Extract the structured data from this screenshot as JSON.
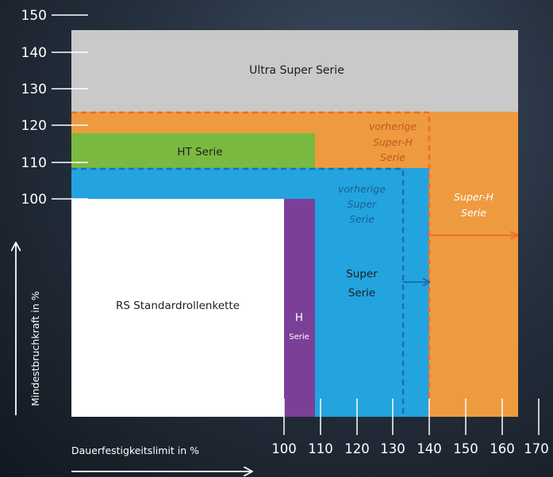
{
  "y_axis": {
    "label": "Mindestbruchkraft in %",
    "ticks": [
      100,
      110,
      120,
      130,
      140,
      150
    ]
  },
  "x_axis": {
    "label": "Dauerfestigkeitslimit in %",
    "ticks": [
      100,
      110,
      120,
      130,
      140,
      150,
      160,
      170
    ]
  },
  "regions": {
    "ultra_super": {
      "label": "Ultra Super Serie"
    },
    "super_h": {
      "line1": "Super-H",
      "line2": "Serie"
    },
    "prev_super_h": {
      "line1": "vorherige",
      "line2": "Super-H",
      "line3": "Serie"
    },
    "ht": {
      "label": "HT Serie"
    },
    "prev_super": {
      "line1": "vorherige",
      "line2": "Super",
      "line3": "Serie"
    },
    "super": {
      "line1": "Super",
      "line2": "Serie"
    },
    "rs": {
      "label": "RS Standardrollenkette"
    },
    "h": {
      "line1": "H",
      "line2": "Serie"
    }
  },
  "colors": {
    "ultra_super": "#c9c9c9",
    "super_h": "#ee9b40",
    "ht": "#7ab940",
    "super": "#23a4df",
    "rs": "#ffffff",
    "h": "#7c3f98",
    "dashed_orange": "#ee6e2a",
    "dashed_blue": "#1b6fb3"
  }
}
